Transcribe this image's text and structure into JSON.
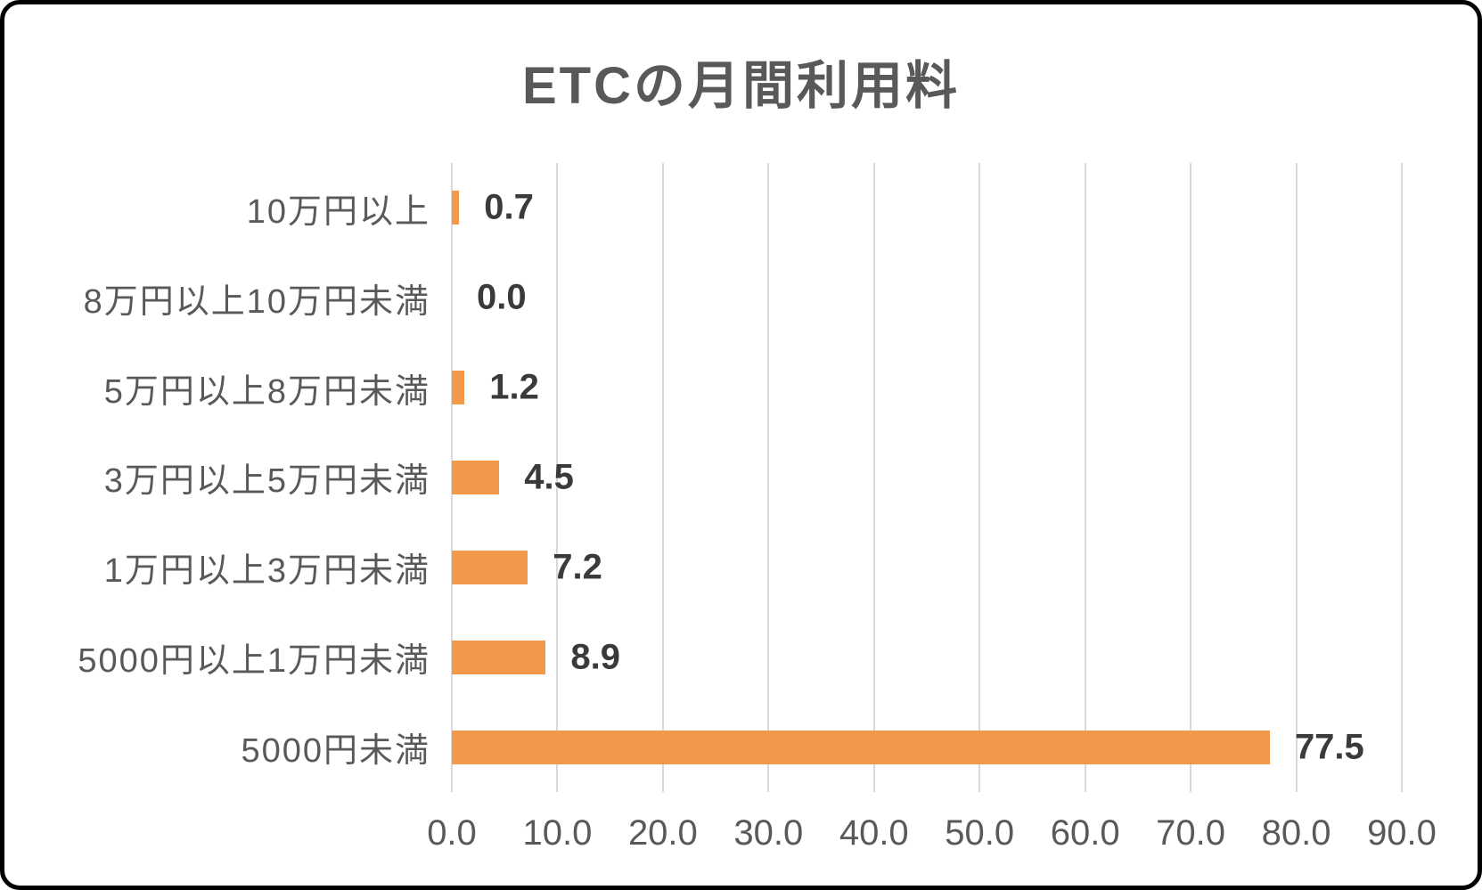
{
  "chart_data": {
    "type": "bar",
    "orientation": "horizontal",
    "title": "ETCの月間利用料",
    "categories": [
      "10万円以上",
      "8万円以上10万円未満",
      "5万円以上8万円未満",
      "3万円以上5万円未満",
      "1万円以上3万円未満",
      "5000円以上1万円未満",
      "5000円未満"
    ],
    "values": [
      0.7,
      0.0,
      1.2,
      4.5,
      7.2,
      8.9,
      77.5
    ],
    "value_labels": [
      "0.7",
      "0.0",
      "1.2",
      "4.5",
      "7.2",
      "8.9",
      "77.5"
    ],
    "x_ticks": [
      "0.0",
      "10.0",
      "20.0",
      "30.0",
      "40.0",
      "50.0",
      "60.0",
      "70.0",
      "80.0",
      "90.0"
    ],
    "x_tick_values": [
      0,
      10,
      20,
      30,
      40,
      50,
      60,
      70,
      80,
      90
    ],
    "xlim": [
      0,
      90
    ],
    "grid": true,
    "legend": "none",
    "colors": {
      "bar": "#f2984b",
      "title_text": "#595959",
      "axis_text": "#595959",
      "value_text": "#3a3a3a",
      "gridline": "#d9d9d9",
      "frame_border": "#000000",
      "background": "#ffffff"
    }
  }
}
